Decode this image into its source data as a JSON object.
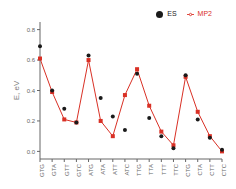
{
  "chart_data": {
    "type": "line",
    "categories": [
      "GTG",
      "GTA",
      "GTT",
      "GTC",
      "ATG",
      "ATA",
      "ATT",
      "ATC",
      "TTG",
      "TTA",
      "TTT",
      "TTC",
      "CTG",
      "CTA",
      "CTT",
      "CTC"
    ],
    "series": [
      {
        "name": "MP2",
        "type": "line",
        "marker": "square",
        "color": "#d93025",
        "values": [
          0.61,
          0.39,
          0.21,
          0.19,
          0.6,
          0.2,
          0.1,
          0.37,
          0.54,
          0.3,
          0.13,
          0.04,
          0.49,
          0.26,
          0.1,
          0.0
        ]
      },
      {
        "name": "ES",
        "type": "scatter",
        "marker": "circle",
        "color": "#1a1a1a",
        "values": [
          0.69,
          0.4,
          0.28,
          0.19,
          0.63,
          0.35,
          0.23,
          0.14,
          0.51,
          0.22,
          0.1,
          0.02,
          0.5,
          0.21,
          0.09,
          0.01
        ]
      }
    ],
    "ylabel": "E, eV",
    "ylim": [
      -0.05,
      0.85
    ],
    "yticks": [
      {
        "value": 0.0,
        "label": "0.0"
      },
      0.2,
      0.4,
      0.6,
      0.8
    ],
    "legend": "upper right",
    "grid": false
  }
}
